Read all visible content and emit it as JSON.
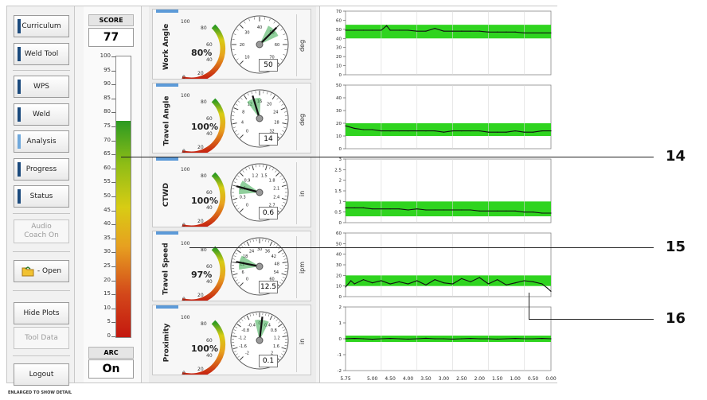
{
  "sidebar": {
    "buttons": [
      "Curriculum",
      "Weld Tool",
      "WPS",
      "Weld",
      "Analysis",
      "Progress",
      "Status"
    ],
    "audio": "Audio\nCoach On",
    "open": "- Open",
    "hide_plots": "Hide Plots",
    "tool_data": "Tool Data",
    "logout": "Logout"
  },
  "score": {
    "label": "SCORE",
    "value": "77",
    "fill_percent": 77,
    "ticks": [
      "100",
      "95",
      "90",
      "85",
      "80",
      "75",
      "70",
      "65",
      "60",
      "55",
      "50",
      "45",
      "40",
      "35",
      "30",
      "25",
      "20",
      "15",
      "10",
      "5",
      "0"
    ],
    "arc_label": "ARC",
    "arc_value": "On"
  },
  "gauges": [
    {
      "name": "Work Angle",
      "percent": "80%",
      "unit": "deg",
      "readout": "50",
      "ticks": [
        "10",
        "20",
        "30",
        "40",
        "50",
        "60",
        "70"
      ]
    },
    {
      "name": "Travel Angle",
      "percent": "100%",
      "unit": "deg",
      "readout": "14",
      "ticks": [
        "0",
        "4",
        "8",
        "12",
        "16",
        "20",
        "24",
        "28",
        "32"
      ]
    },
    {
      "name": "CTWD",
      "percent": "100%",
      "unit": "in",
      "readout": "0.6",
      "ticks": [
        "0",
        "0.3",
        "0.6",
        "0.9",
        "1.2",
        "1.5",
        "1.8",
        "2.1",
        "2.4",
        "2.7"
      ]
    },
    {
      "name": "Travel Speed",
      "percent": "97%",
      "unit": "ipm",
      "readout": "12.5",
      "ticks": [
        "0",
        "6",
        "12",
        "18",
        "24",
        "30",
        "36",
        "42",
        "48",
        "54",
        "60"
      ]
    },
    {
      "name": "Proximity",
      "percent": "100%",
      "unit": "in",
      "readout": "0.1",
      "ticks": [
        "-2",
        "-1.6",
        "-1.2",
        "-0.8",
        "-0.4",
        "0",
        "0.4",
        "0.8",
        "1.2",
        "1.6",
        "2"
      ]
    }
  ],
  "colors": {
    "band": "#2fd41f",
    "trace": "#111111",
    "tab": "#5c9ad8"
  },
  "chart_data": [
    {
      "type": "line",
      "name": "Work Angle",
      "ylim": [
        0,
        70
      ],
      "yticks": [
        "0",
        "10",
        "20",
        "30",
        "40",
        "50",
        "60",
        "70"
      ],
      "band": [
        40,
        55
      ],
      "x": [
        5.75,
        5.5,
        5.25,
        5.0,
        4.75,
        4.6,
        4.5,
        4.25,
        4.0,
        3.75,
        3.5,
        3.25,
        3.0,
        2.75,
        2.5,
        2.25,
        2.0,
        1.75,
        1.5,
        1.25,
        1.0,
        0.75,
        0.5,
        0.25,
        0.0
      ],
      "y": [
        49,
        49,
        49,
        49,
        49,
        54,
        49,
        49,
        49,
        48,
        48,
        51,
        48,
        48,
        48,
        48,
        48,
        47,
        47,
        47,
        47,
        46,
        46,
        46,
        46
      ]
    },
    {
      "type": "line",
      "name": "Travel Angle",
      "ylim": [
        0,
        50
      ],
      "yticks": [
        "0",
        "10",
        "20",
        "30",
        "40",
        "50"
      ],
      "band": [
        10,
        20
      ],
      "x": [
        5.75,
        5.5,
        5.25,
        5.0,
        4.75,
        4.5,
        4.25,
        4.0,
        3.75,
        3.5,
        3.25,
        3.0,
        2.75,
        2.5,
        2.25,
        2.0,
        1.75,
        1.5,
        1.25,
        1.0,
        0.75,
        0.5,
        0.25,
        0.0
      ],
      "y": [
        18,
        16,
        15,
        15,
        14,
        14,
        14,
        14,
        14,
        14,
        14,
        13,
        14,
        14,
        14,
        14,
        13,
        13,
        13,
        14,
        13,
        13,
        14,
        14
      ]
    },
    {
      "type": "line",
      "name": "CTWD",
      "ylim": [
        0,
        3
      ],
      "yticks": [
        "0",
        "0.5",
        "1",
        "1.5",
        "2",
        "2.5",
        "3"
      ],
      "band": [
        0.3,
        1.0
      ],
      "x": [
        5.75,
        5.5,
        5.25,
        5.0,
        4.75,
        4.5,
        4.25,
        4.0,
        3.75,
        3.5,
        3.25,
        3.0,
        2.75,
        2.5,
        2.25,
        2.0,
        1.75,
        1.5,
        1.25,
        1.0,
        0.75,
        0.5,
        0.25,
        0.0
      ],
      "y": [
        0.7,
        0.7,
        0.7,
        0.65,
        0.65,
        0.65,
        0.65,
        0.6,
        0.65,
        0.6,
        0.6,
        0.6,
        0.6,
        0.6,
        0.6,
        0.55,
        0.55,
        0.55,
        0.55,
        0.55,
        0.5,
        0.5,
        0.45,
        0.45
      ]
    },
    {
      "type": "line",
      "name": "Travel Speed",
      "ylim": [
        0,
        60
      ],
      "yticks": [
        "0",
        "10",
        "20",
        "30",
        "40",
        "50",
        "60"
      ],
      "band": [
        10,
        20
      ],
      "x": [
        5.75,
        5.6,
        5.5,
        5.25,
        5.0,
        4.75,
        4.5,
        4.25,
        4.0,
        3.75,
        3.5,
        3.25,
        3.0,
        2.75,
        2.5,
        2.25,
        2.0,
        1.75,
        1.5,
        1.25,
        1.0,
        0.75,
        0.5,
        0.25,
        0.1,
        0.0
      ],
      "y": [
        9,
        15,
        12,
        16,
        13,
        15,
        12,
        14,
        12,
        15,
        11,
        16,
        13,
        12,
        17,
        14,
        18,
        12,
        16,
        11,
        13,
        15,
        14,
        12,
        8,
        5
      ]
    },
    {
      "type": "line",
      "name": "Proximity",
      "ylim": [
        -2,
        2
      ],
      "yticks": [
        "-2",
        "-1",
        "0",
        "1",
        "2"
      ],
      "band": [
        -0.2,
        0.2
      ],
      "x": [
        5.75,
        5.5,
        5.25,
        5.0,
        4.75,
        4.5,
        4.25,
        4.0,
        3.75,
        3.5,
        3.25,
        3.0,
        2.75,
        2.5,
        2.25,
        2.0,
        1.75,
        1.5,
        1.25,
        1.0,
        0.75,
        0.5,
        0.25,
        0.0
      ],
      "y": [
        0,
        0.02,
        0,
        -0.03,
        0,
        0.02,
        0,
        -0.02,
        0,
        0.03,
        0,
        0,
        -0.02,
        0,
        0.02,
        0,
        0,
        -0.02,
        0,
        0.02,
        0,
        0,
        0.02,
        0
      ]
    }
  ],
  "x_axis_ticks": [
    "5.75",
    "5.00",
    "4.50",
    "4.00",
    "3.50",
    "3.00",
    "2.50",
    "2.00",
    "1.50",
    "1.00",
    "0.50",
    "0.00"
  ],
  "callouts": [
    "14",
    "15",
    "16"
  ],
  "footnote": "ENLARGED TO SHOW DETAIL"
}
